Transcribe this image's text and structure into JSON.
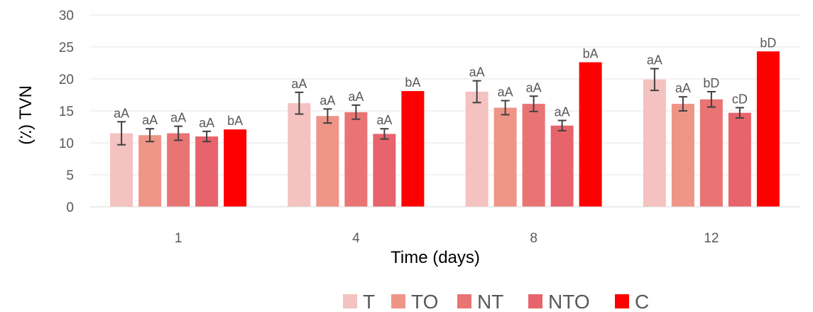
{
  "chart_data": {
    "type": "bar",
    "title": "",
    "xlabel": "Time (days)",
    "ylabel": "(٪) TVN",
    "ylim": [
      0,
      30
    ],
    "yticks": [
      0,
      5,
      10,
      15,
      20,
      25,
      30
    ],
    "grid": true,
    "legend_position": "bottom",
    "categories": [
      "1",
      "4",
      "8",
      "12"
    ],
    "series": [
      {
        "name": "T",
        "color": "#f4c2c0",
        "values": [
          11.5,
          16.2,
          18.0,
          19.9
        ],
        "errors": [
          1.8,
          1.7,
          1.7,
          1.7
        ],
        "labels": [
          "aA",
          "aA",
          "aA",
          "aA"
        ]
      },
      {
        "name": "TO",
        "color": "#ee9588",
        "values": [
          11.2,
          14.2,
          15.5,
          16.1
        ],
        "errors": [
          1.0,
          1.1,
          1.1,
          1.1
        ],
        "labels": [
          "aA",
          "aA",
          "aA",
          "aA"
        ]
      },
      {
        "name": "NT",
        "color": "#e97474",
        "values": [
          11.5,
          14.8,
          16.1,
          16.8
        ],
        "errors": [
          1.1,
          1.1,
          1.2,
          1.2
        ],
        "labels": [
          "aA",
          "aA",
          "aA",
          "bD"
        ]
      },
      {
        "name": "NTO",
        "color": "#e7646c",
        "values": [
          11.0,
          11.4,
          12.7,
          14.7
        ],
        "errors": [
          0.8,
          0.8,
          0.8,
          0.8
        ],
        "labels": [
          "aA",
          "aA",
          "aA",
          "cD"
        ]
      },
      {
        "name": "C",
        "color": "#ff0000",
        "values": [
          12.1,
          18.1,
          22.6,
          24.3
        ],
        "errors": [
          0,
          0,
          0,
          0
        ],
        "labels": [
          "bA",
          "bA",
          "bA",
          "bD"
        ]
      }
    ]
  }
}
